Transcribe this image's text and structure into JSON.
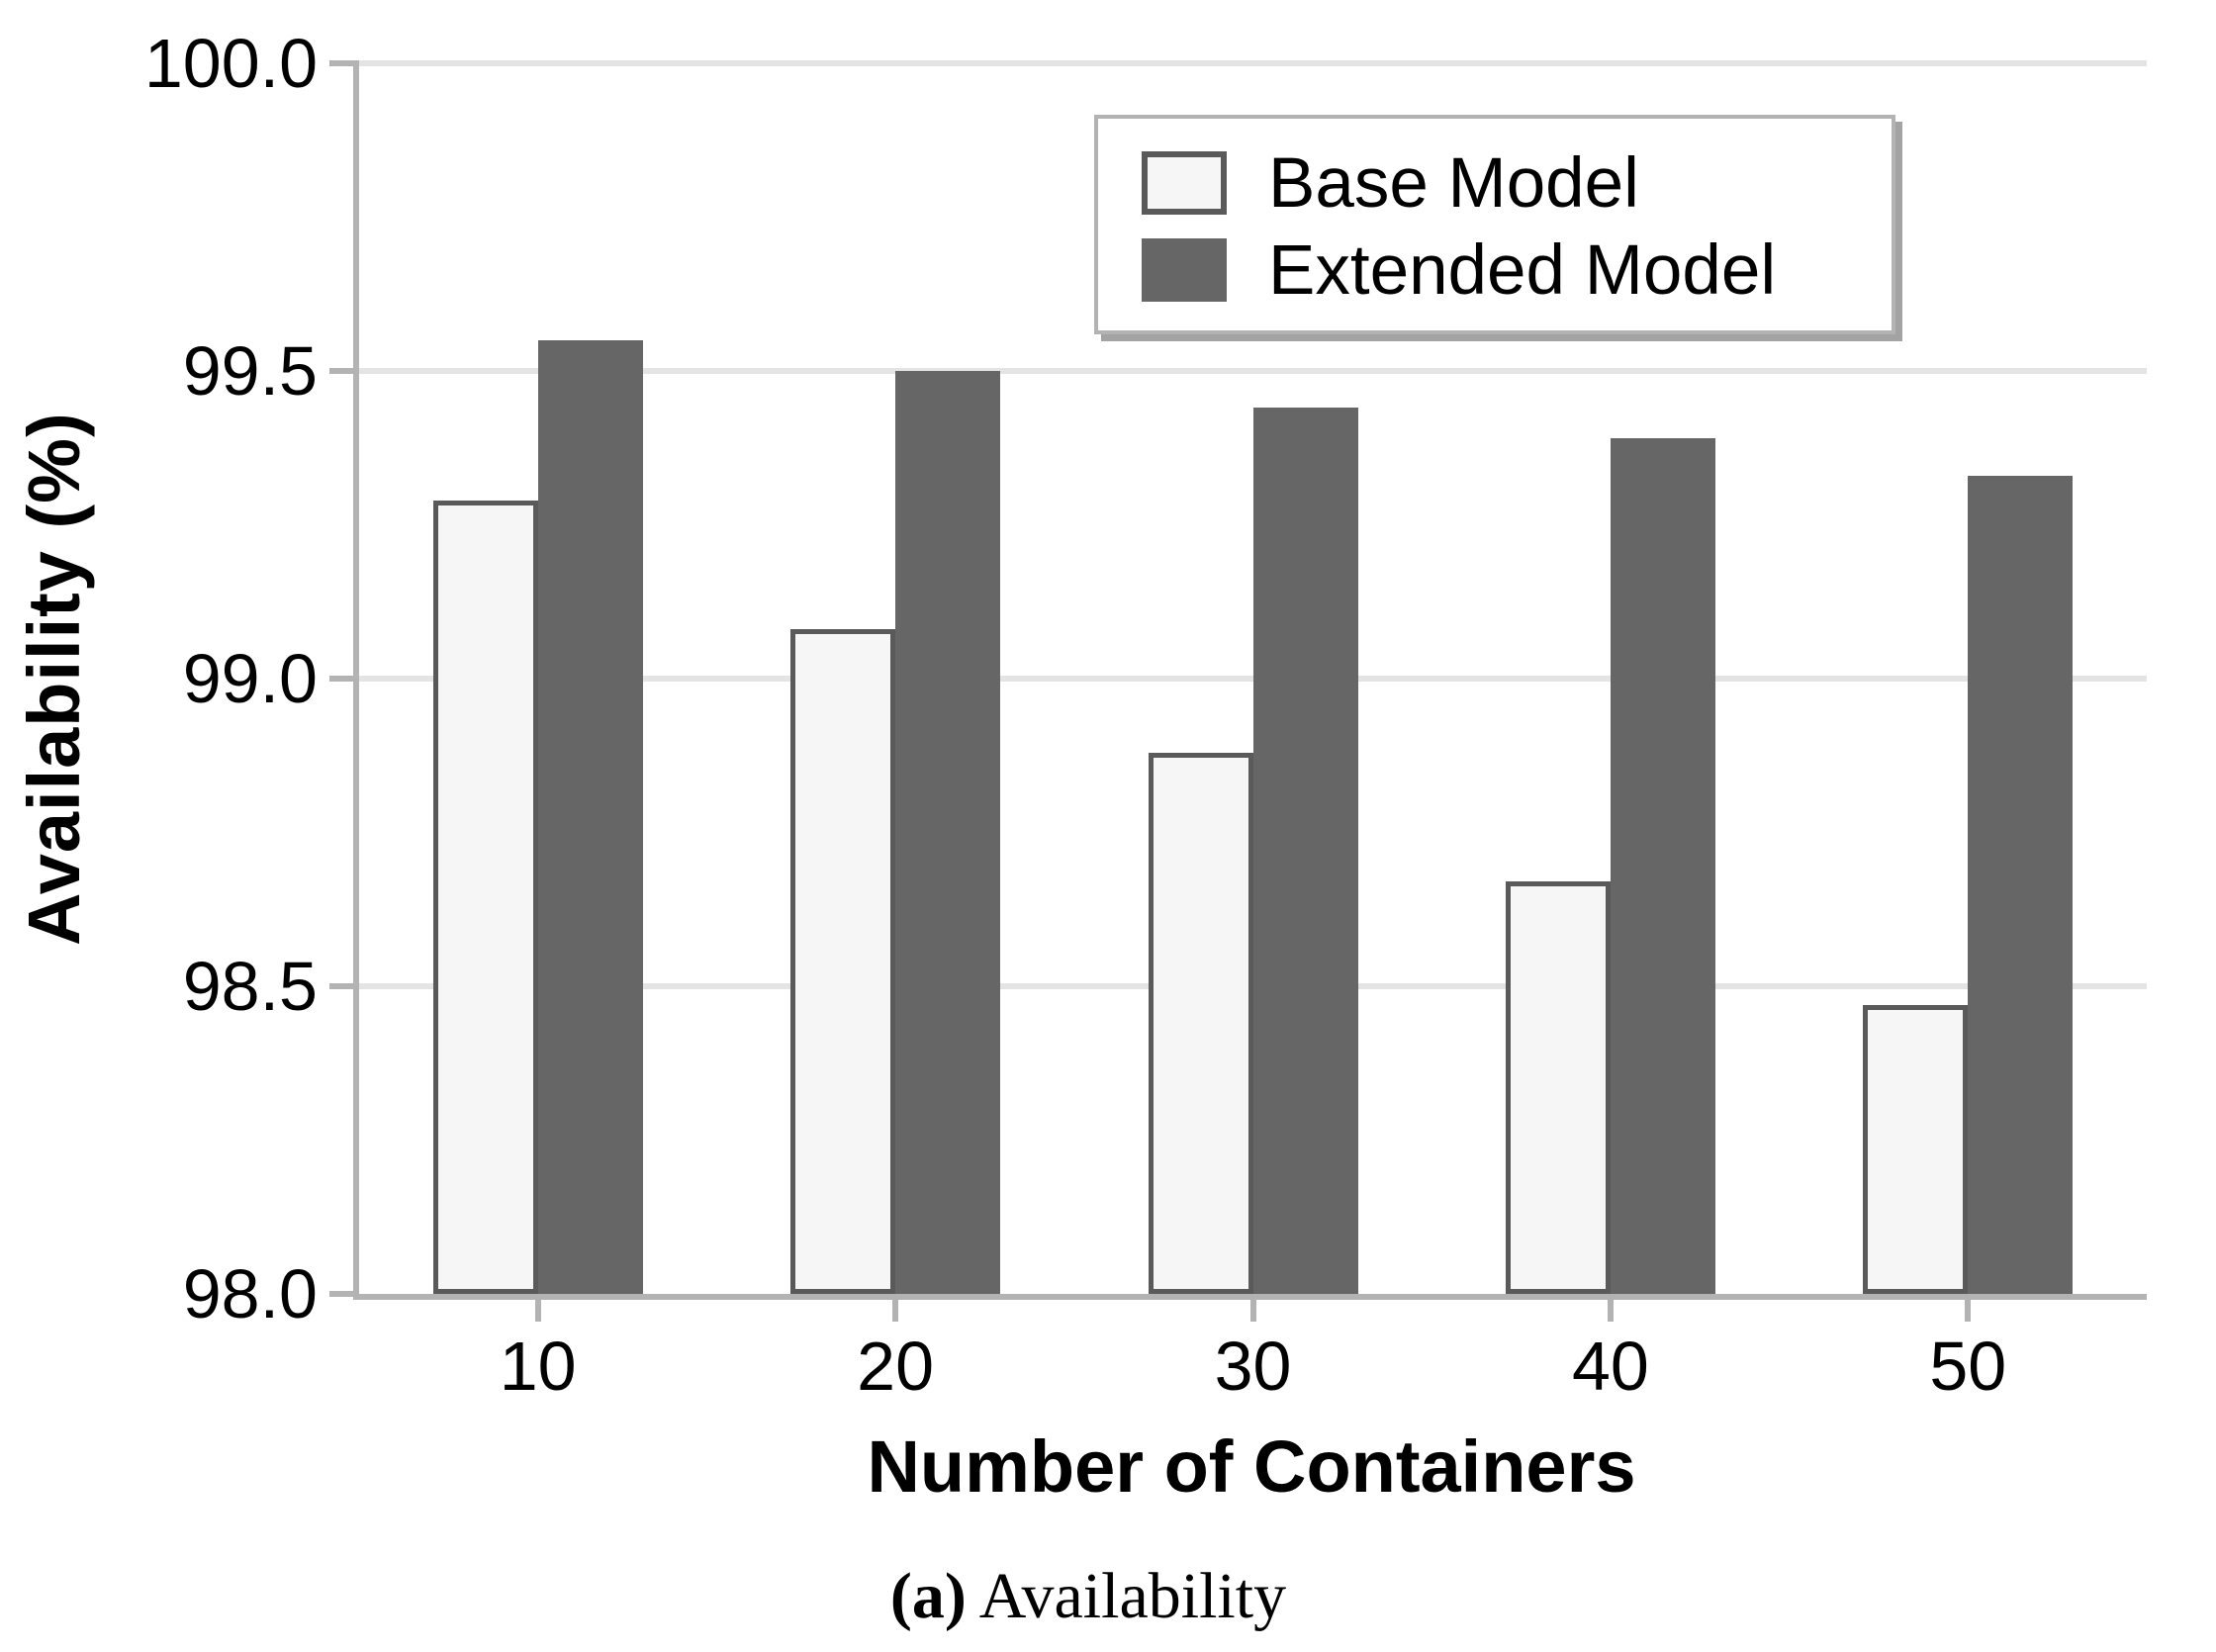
{
  "figure": {
    "caption_prefix": "(a)",
    "caption_text": " Availability"
  },
  "chart_data": {
    "type": "bar",
    "title": "",
    "xlabel": "Number of Containers",
    "ylabel": "Availability (%)",
    "categories": [
      "10",
      "20",
      "30",
      "40",
      "50"
    ],
    "series": [
      {
        "name": "Base Model",
        "values": [
          99.29,
          99.08,
          98.88,
          98.67,
          98.47
        ],
        "fill": "#f6f6f6",
        "border": "#5a5a5a"
      },
      {
        "name": "Extended Model",
        "values": [
          99.55,
          99.5,
          99.44,
          99.39,
          99.33
        ],
        "fill": "#666666",
        "border": "#666666"
      }
    ],
    "ylim": [
      98.0,
      100.0
    ],
    "yticks": [
      {
        "value": 100.0,
        "label": "100.0"
      },
      {
        "value": 99.5,
        "label": "99.5"
      },
      {
        "value": 99.0,
        "label": "99.0"
      },
      {
        "value": 98.5,
        "label": "98.5"
      },
      {
        "value": 98.0,
        "label": "98.0"
      }
    ],
    "grid": true,
    "legend_position": "upper center",
    "colors": {
      "gridline": "#e4e4e4",
      "axis": "#b3b3b3",
      "text": "#000000",
      "background": "#ffffff"
    }
  }
}
